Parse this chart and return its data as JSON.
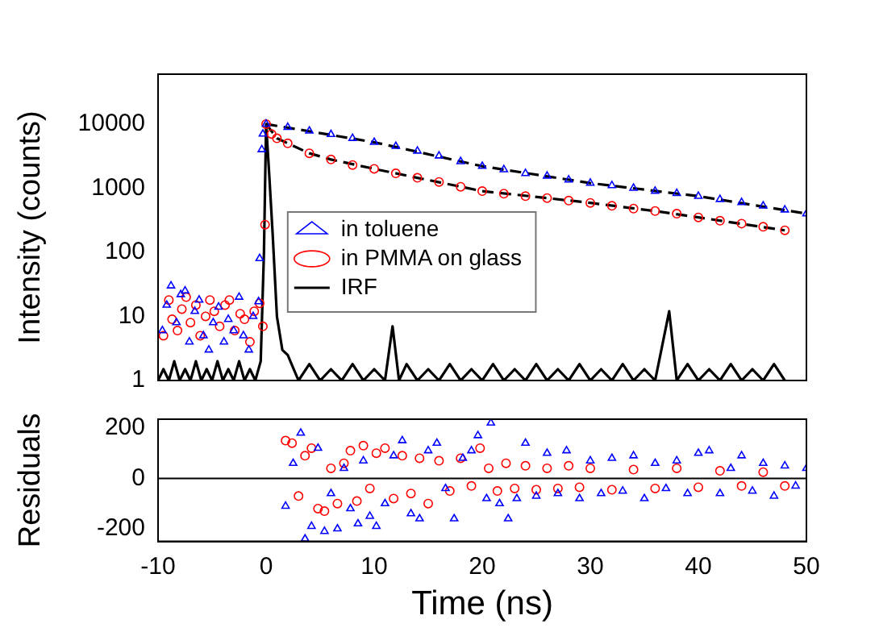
{
  "chart_data": [
    {
      "type": "scatter",
      "ylabel": "Intensity (counts)",
      "xlim": [
        -10,
        50
      ],
      "xticks": [
        -10,
        0,
        10,
        20,
        30,
        40,
        50
      ],
      "ylim": [
        1,
        60000
      ],
      "yticks": [
        1,
        10,
        100,
        1000,
        10000
      ],
      "log": "y",
      "tick_labels": "y",
      "grid": false,
      "legend": "bottom left",
      "series": [
        {
          "name": "in toluene",
          "marker": "triangle",
          "color": "#0000ff",
          "x": [
            -9.6,
            -9.2,
            -8.8,
            -8.3,
            -7.9,
            -7.5,
            -7.1,
            -6.6,
            -6.2,
            -5.8,
            -5.3,
            -4.9,
            -4.4,
            -3.9,
            -3.5,
            -3.0,
            -2.5,
            -2.1,
            -1.6,
            -1.2,
            -0.7,
            -0.6,
            -0.4,
            -0.3,
            0,
            2,
            4,
            6,
            8,
            10,
            12,
            14,
            16,
            18,
            20,
            22,
            24,
            26,
            28,
            30,
            32,
            34,
            36,
            38,
            40,
            42,
            44,
            46,
            48,
            50
          ],
          "values": [
            6,
            15,
            30,
            8,
            22,
            25,
            4,
            12,
            18,
            5,
            3,
            8,
            14,
            4,
            9,
            6,
            20,
            5,
            3,
            10,
            17,
            80,
            4000,
            7000,
            10000,
            8900,
            7800,
            6900,
            6000,
            5200,
            4500,
            3800,
            3200,
            2600,
            2200,
            1950,
            1700,
            1550,
            1350,
            1200,
            1100,
            1000,
            900,
            830,
            750,
            670,
            600,
            530,
            460,
            400
          ]
        },
        {
          "name": "in PMMA on glass",
          "marker": "circle",
          "color": "#ff0000",
          "x": [
            -9.5,
            -9.0,
            -8.7,
            -8.2,
            -7.8,
            -7.4,
            -7.0,
            -6.5,
            -6.1,
            -5.6,
            -5.2,
            -4.8,
            -4.3,
            -3.8,
            -3.4,
            -2.9,
            -2.4,
            -2.0,
            -1.5,
            -1.1,
            -0.6,
            -0.3,
            -0.1,
            0,
            0.5,
            1,
            2,
            4,
            6,
            8,
            10,
            12,
            14,
            16,
            18,
            20,
            22,
            24,
            26,
            28,
            30,
            32,
            34,
            36,
            38,
            40,
            42,
            44,
            46,
            48
          ],
          "values": [
            5,
            18,
            9,
            6,
            13,
            20,
            8,
            15,
            5,
            10,
            18,
            12,
            7,
            15,
            18,
            6,
            11,
            9,
            4,
            12,
            16,
            7,
            270,
            10000,
            7000,
            6000,
            5000,
            3500,
            2800,
            2300,
            2000,
            1700,
            1450,
            1250,
            1050,
            900,
            820,
            750,
            700,
            640,
            590,
            530,
            480,
            440,
            400,
            350,
            310,
            280,
            250,
            220
          ]
        },
        {
          "name": "IRF",
          "type": "line",
          "marker": "none",
          "color": "#000000",
          "x": [
            -10,
            -9.5,
            -9,
            -8.5,
            -8,
            -7.5,
            -7,
            -6.5,
            -6,
            -5.5,
            -5,
            -4.5,
            -4,
            -3.5,
            -3,
            -2.5,
            -2,
            -1.5,
            -1,
            -0.5,
            -0.2,
            0,
            0.3,
            0.6,
            1,
            1.5,
            2,
            3,
            4,
            5,
            6,
            7,
            8,
            9,
            10,
            11,
            11.7,
            12.3,
            13,
            14,
            15,
            16,
            17,
            18,
            19,
            20,
            21,
            22,
            23,
            24,
            25,
            26,
            27,
            28,
            29,
            30,
            31,
            32,
            33,
            34,
            35,
            36,
            37.3,
            38,
            39,
            40,
            41,
            42,
            43,
            44,
            45,
            46,
            47,
            48
          ],
          "values": [
            1,
            1.5,
            1,
            2,
            1,
            1.5,
            1,
            2,
            1,
            1.5,
            1,
            2,
            1,
            1.5,
            1,
            2,
            1,
            1.5,
            1,
            2,
            100,
            10000,
            1500,
            200,
            10,
            3,
            2.5,
            1,
            1.8,
            1,
            1.5,
            1,
            1.8,
            1,
            1.5,
            1,
            7,
            1,
            1.8,
            1,
            1.5,
            1,
            1.8,
            1,
            1.5,
            1,
            1.8,
            1,
            1.5,
            1,
            1.8,
            1,
            1.5,
            1,
            1.8,
            1,
            1.5,
            1,
            1.8,
            1,
            1.5,
            1,
            12,
            1,
            1.8,
            1,
            1.5,
            1,
            1.8,
            1,
            1.5,
            1,
            1.8,
            1
          ]
        },
        {
          "type": "line",
          "marker": "none",
          "line_style": "dashed",
          "color": "#000000",
          "x": [
            0,
            10,
            20,
            30,
            40,
            50
          ],
          "values": [
            10000,
            5200,
            2200,
            1200,
            750,
            400
          ]
        },
        {
          "type": "line",
          "marker": "none",
          "line_style": "dashed",
          "color": "#000000",
          "x": [
            0,
            1,
            2,
            4,
            6,
            10,
            14,
            20,
            26,
            30,
            36,
            40,
            48
          ],
          "values": [
            10000,
            6000,
            5000,
            3500,
            2800,
            2000,
            1450,
            900,
            700,
            590,
            440,
            350,
            220
          ]
        }
      ]
    },
    {
      "type": "scatter",
      "xlabel": "Time (ns)",
      "ylabel": "Residuals",
      "xlim": [
        -10,
        50
      ],
      "xticks": [
        -10,
        0,
        10,
        20,
        30,
        40,
        50
      ],
      "ylim": [
        -250,
        235
      ],
      "yticks": [
        -200,
        0,
        200
      ],
      "grid": false,
      "ref_lines": [
        {
          "axis": "y",
          "value": 0,
          "color": "#000000"
        }
      ],
      "series": [
        {
          "marker": "triangle",
          "color": "#0000ff",
          "x": [
            1.8,
            2.5,
            3.2,
            3.6,
            4.2,
            4.8,
            5.4,
            6.0,
            6.6,
            7.2,
            7.8,
            8.5,
            9.0,
            9.6,
            10.2,
            11,
            11.8,
            12.6,
            13.4,
            14.2,
            15,
            15.8,
            16.6,
            17.4,
            18.2,
            19,
            19.6,
            20.4,
            20.8,
            21.6,
            22.4,
            23.2,
            24,
            25,
            26,
            27,
            27.8,
            29,
            30,
            31,
            32,
            33,
            34,
            35,
            36,
            37,
            38,
            39,
            40,
            41,
            42,
            43,
            44,
            45,
            46,
            47,
            48,
            49,
            50
          ],
          "values": [
            -110,
            60,
            180,
            -240,
            -190,
            120,
            -210,
            -60,
            -200,
            40,
            -120,
            -180,
            70,
            -150,
            -190,
            -100,
            90,
            150,
            -140,
            -160,
            110,
            140,
            -40,
            -160,
            80,
            110,
            170,
            -80,
            220,
            -100,
            -160,
            -80,
            140,
            -70,
            100,
            -60,
            110,
            -80,
            70,
            -60,
            80,
            -50,
            90,
            -80,
            60,
            -40,
            70,
            -60,
            100,
            110,
            -60,
            40,
            90,
            -50,
            60,
            -70,
            50,
            -30,
            40
          ]
        },
        {
          "marker": "circle",
          "color": "#ff0000",
          "x": [
            1.8,
            2.4,
            3,
            3.6,
            4.2,
            4.8,
            5.4,
            6,
            6.6,
            7.2,
            7.8,
            8.4,
            9,
            9.6,
            10.2,
            11,
            11.8,
            12.6,
            13.4,
            14.2,
            15,
            16,
            17,
            18,
            19,
            19.8,
            20.6,
            21.4,
            22.2,
            23,
            24,
            25,
            26,
            27,
            28,
            29,
            30,
            32,
            34,
            36,
            38,
            40,
            42,
            44,
            46,
            48
          ],
          "values": [
            150,
            140,
            -70,
            90,
            120,
            -120,
            -130,
            40,
            -100,
            60,
            110,
            -90,
            130,
            -40,
            100,
            120,
            -80,
            90,
            -60,
            80,
            -100,
            70,
            -50,
            80,
            -30,
            120,
            40,
            -50,
            60,
            -40,
            50,
            -45,
            40,
            -40,
            50,
            -35,
            40,
            -45,
            35,
            -40,
            40,
            -35,
            30,
            -30,
            25,
            -30
          ]
        }
      ]
    }
  ]
}
